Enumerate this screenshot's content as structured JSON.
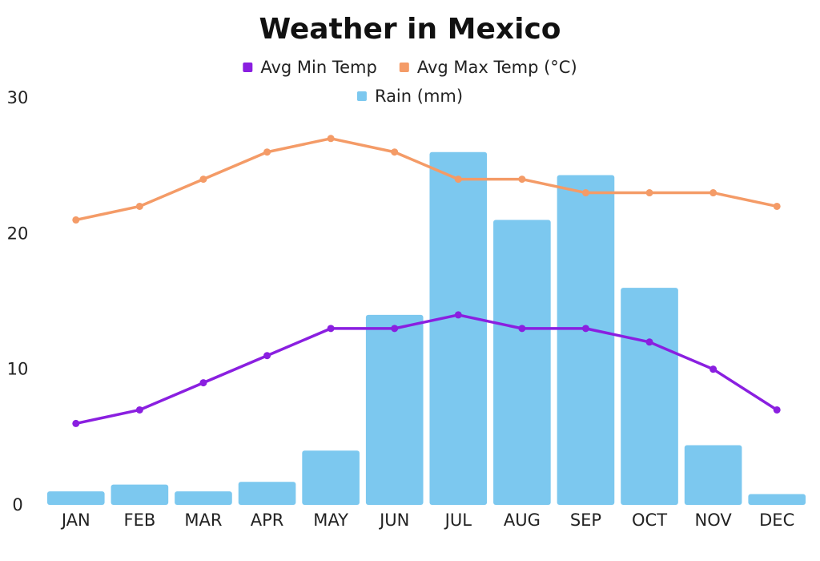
{
  "chart_data": {
    "type": "bar",
    "title": "Weather in Mexico",
    "categories": [
      "JAN",
      "FEB",
      "MAR",
      "APR",
      "MAY",
      "JUN",
      "JUL",
      "AUG",
      "SEP",
      "OCT",
      "NOV",
      "DEC"
    ],
    "series": [
      {
        "name": "Avg Min Temp",
        "type": "line",
        "color": "#8a1fe0",
        "values": [
          6,
          7,
          9,
          11,
          13,
          13,
          14,
          13,
          13,
          12,
          10,
          7
        ]
      },
      {
        "name": "Avg Max Temp (°C)",
        "type": "line",
        "color": "#f49b67",
        "values": [
          21,
          22,
          24,
          26,
          27,
          26,
          24,
          24,
          23,
          23,
          23,
          22
        ]
      },
      {
        "name": "Rain (mm)",
        "type": "bar",
        "color": "#7cc8ef",
        "values": [
          1,
          1.5,
          1,
          1.7,
          4,
          14,
          26,
          21,
          24.3,
          16,
          4.4,
          0.8
        ]
      }
    ],
    "ylim": [
      0,
      30
    ],
    "yticks": [
      0,
      10,
      20,
      30
    ],
    "xlabel": "",
    "ylabel": "",
    "grid": false,
    "legend": "top-center"
  }
}
